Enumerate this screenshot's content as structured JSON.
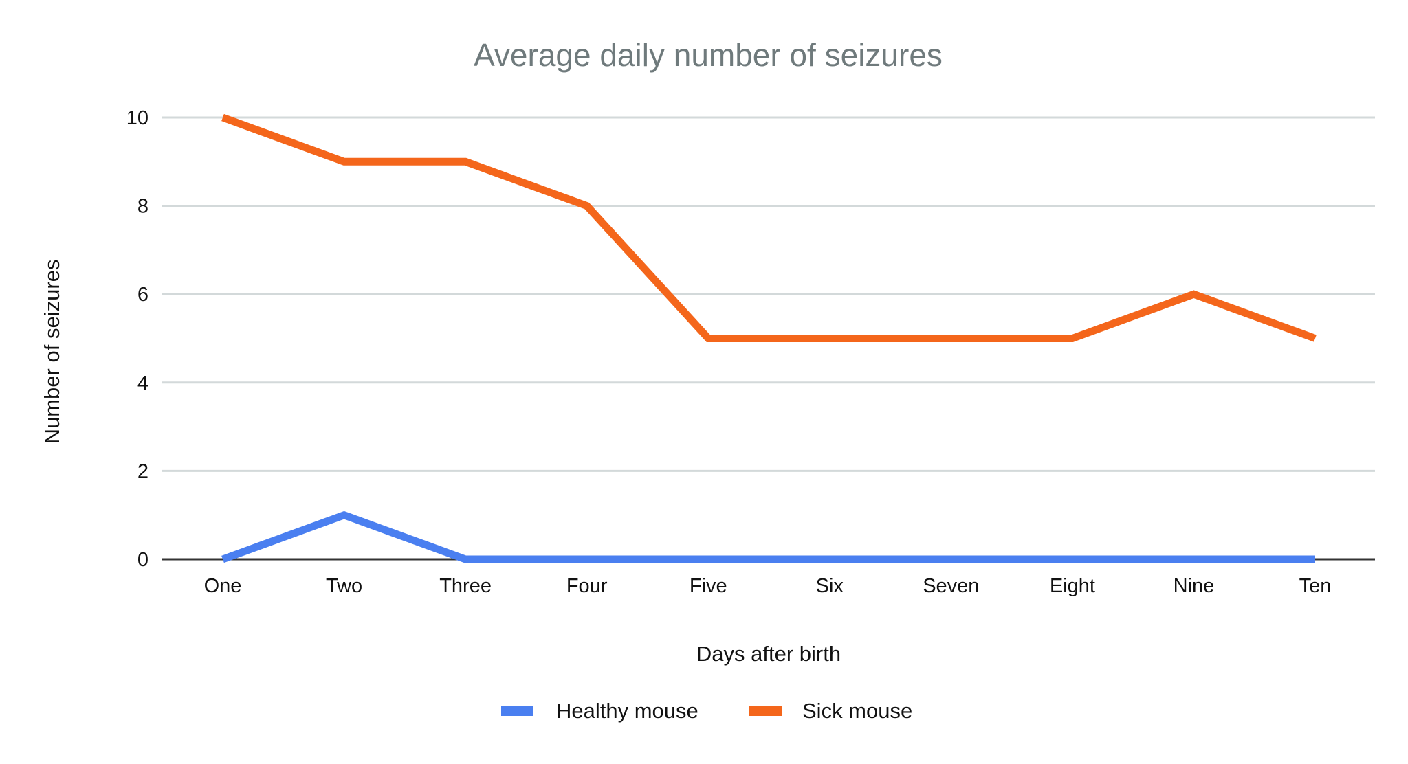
{
  "chart_data": {
    "type": "line",
    "title": "Average daily number of seizures",
    "xlabel": "Days after birth",
    "ylabel": "Number of seizures",
    "categories": [
      "One",
      "Two",
      "Three",
      "Four",
      "Five",
      "Six",
      "Seven",
      "Eight",
      "Nine",
      "Ten"
    ],
    "ylim": [
      0,
      10
    ],
    "yticks": [
      0,
      2,
      4,
      6,
      8,
      10
    ],
    "grid": true,
    "legend_position": "bottom",
    "series": [
      {
        "name": "Healthy mouse",
        "color": "#4a7ff0",
        "values": [
          0,
          1,
          0,
          0,
          0,
          0,
          0,
          0,
          0,
          0
        ]
      },
      {
        "name": "Sick mouse",
        "color": "#f4661b",
        "values": [
          10,
          9,
          9,
          8,
          5,
          5,
          5,
          5,
          6,
          5
        ]
      }
    ]
  }
}
